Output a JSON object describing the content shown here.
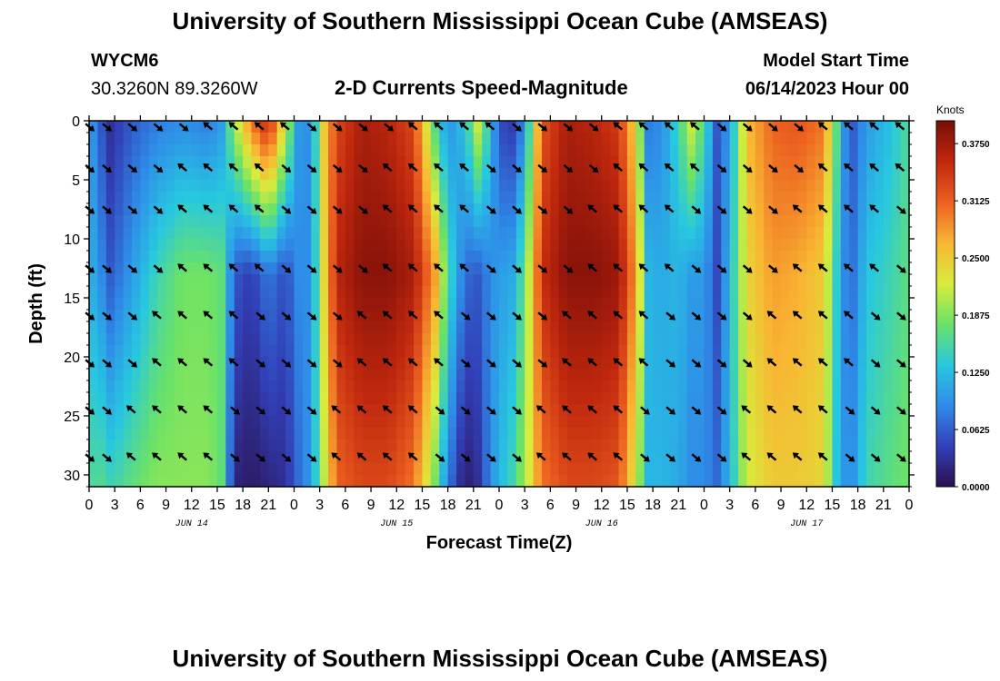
{
  "header": {
    "title_top": "University of Southern Mississippi Ocean Cube (AMSEAS)",
    "title_bottom": "University of Southern Mississippi Ocean Cube (AMSEAS)",
    "station": "WYCM6",
    "coords": "30.3260N  89.3260W",
    "plot_title": "2-D Currents Speed-Magnitude",
    "model_start_label": "Model Start Time",
    "model_start_value": "06/14/2023 Hour 00"
  },
  "colorbar": {
    "unit": "Knots",
    "ticks": [
      "0.0000",
      "0.0625",
      "0.1250",
      "0.1875",
      "0.2500",
      "0.3125",
      "0.3750"
    ],
    "stops": [
      "#2b0f4e",
      "#3240b8",
      "#2f8ce8",
      "#27c8e0",
      "#6be266",
      "#d8ec3c",
      "#f9b532",
      "#ec6020",
      "#c0280e",
      "#7a0d08"
    ]
  },
  "chart_data": {
    "type": "heatmap",
    "title": "2-D Currents Speed-Magnitude",
    "xlabel": "Forecast Time(Z)",
    "ylabel": "Depth (ft)",
    "x_hours": [
      0,
      96
    ],
    "x_tick_labels": [
      "0",
      "3",
      "6",
      "9",
      "12",
      "15",
      "18",
      "21",
      "0",
      "3",
      "6",
      "9",
      "12",
      "15",
      "18",
      "21",
      "0",
      "3",
      "6",
      "9",
      "12",
      "15",
      "18",
      "21",
      "0",
      "3",
      "6",
      "9",
      "12",
      "15",
      "18",
      "21",
      "0"
    ],
    "day_labels": [
      {
        "label": "JUN 14",
        "hour": 12
      },
      {
        "label": "JUN 15",
        "hour": 36
      },
      {
        "label": "JUN 16",
        "hour": 60
      },
      {
        "label": "JUN 17",
        "hour": 84
      }
    ],
    "ylim": [
      0,
      31
    ],
    "y_ticks": [
      0,
      5,
      10,
      15,
      20,
      25,
      30
    ],
    "value_range": [
      0,
      0.4
    ],
    "vector_depths": [
      0.5,
      4,
      7.5,
      12.5,
      16.5,
      20.5,
      24.5,
      28.5
    ],
    "vector_hours": [
      0,
      2,
      5,
      8,
      11,
      14,
      17,
      20,
      23,
      26,
      29,
      32,
      35,
      38,
      41,
      44,
      47,
      50,
      53,
      56,
      59,
      62,
      65,
      68,
      71,
      74,
      77,
      80,
      83,
      86,
      89,
      92,
      95
    ],
    "speed_profile_by_hour": [
      {
        "hour": 0,
        "speed": [
          0.11,
          0.12,
          0.15
        ]
      },
      {
        "hour": 1,
        "speed": [
          0.07,
          0.1,
          0.17
        ]
      },
      {
        "hour": 2.5,
        "speed": [
          0.03,
          0.06,
          0.15
        ]
      },
      {
        "hour": 5,
        "speed": [
          0.06,
          0.1,
          0.17
        ]
      },
      {
        "hour": 8,
        "speed": [
          0.08,
          0.15,
          0.19
        ]
      },
      {
        "hour": 11,
        "speed": [
          0.09,
          0.18,
          0.19
        ]
      },
      {
        "hour": 14,
        "speed": [
          0.08,
          0.18,
          0.19
        ]
      },
      {
        "hour": 15.5,
        "speed": [
          0.1,
          0.17,
          0.17
        ]
      },
      {
        "hour": 17,
        "speed": [
          0.2,
          0.06,
          0.02
        ]
      },
      {
        "hour": 19,
        "speed": [
          0.3,
          0.04,
          0.01
        ]
      },
      {
        "hour": 21,
        "speed": [
          0.36,
          0.08,
          0.02
        ]
      },
      {
        "hour": 23,
        "speed": [
          0.22,
          0.05,
          0.03
        ]
      },
      {
        "hour": 24.5,
        "speed": [
          0.1,
          0.09,
          0.07
        ]
      },
      {
        "hour": 26,
        "speed": [
          0.09,
          0.09,
          0.1
        ]
      },
      {
        "hour": 27.5,
        "speed": [
          0.25,
          0.24,
          0.21
        ]
      },
      {
        "hour": 29,
        "speed": [
          0.33,
          0.36,
          0.31
        ]
      },
      {
        "hour": 32,
        "speed": [
          0.37,
          0.39,
          0.33
        ]
      },
      {
        "hour": 35,
        "speed": [
          0.36,
          0.39,
          0.33
        ]
      },
      {
        "hour": 38,
        "speed": [
          0.33,
          0.37,
          0.3
        ]
      },
      {
        "hour": 40.5,
        "speed": [
          0.16,
          0.28,
          0.18
        ]
      },
      {
        "hour": 42,
        "speed": [
          0.09,
          0.16,
          0.08
        ]
      },
      {
        "hour": 44,
        "speed": [
          0.13,
          0.07,
          0.01
        ]
      },
      {
        "hour": 45.5,
        "speed": [
          0.22,
          0.06,
          0.03
        ]
      },
      {
        "hour": 47,
        "speed": [
          0.13,
          0.09,
          0.09
        ]
      },
      {
        "hour": 48,
        "speed": [
          0.05,
          0.1,
          0.12
        ]
      },
      {
        "hour": 49.5,
        "speed": [
          0.04,
          0.11,
          0.15
        ]
      },
      {
        "hour": 51,
        "speed": [
          0.09,
          0.17,
          0.2
        ]
      },
      {
        "hour": 53,
        "speed": [
          0.32,
          0.35,
          0.3
        ]
      },
      {
        "hour": 56,
        "speed": [
          0.37,
          0.39,
          0.33
        ]
      },
      {
        "hour": 59,
        "speed": [
          0.36,
          0.39,
          0.33
        ]
      },
      {
        "hour": 62,
        "speed": [
          0.34,
          0.38,
          0.32
        ]
      },
      {
        "hour": 64,
        "speed": [
          0.24,
          0.28,
          0.22
        ]
      },
      {
        "hour": 65.5,
        "speed": [
          0.08,
          0.12,
          0.12
        ]
      },
      {
        "hour": 67,
        "speed": [
          0.09,
          0.11,
          0.12
        ]
      },
      {
        "hour": 69,
        "speed": [
          0.15,
          0.12,
          0.11
        ]
      },
      {
        "hour": 70.5,
        "speed": [
          0.22,
          0.1,
          0.09
        ]
      },
      {
        "hour": 72,
        "speed": [
          0.16,
          0.1,
          0.09
        ]
      },
      {
        "hour": 73.5,
        "speed": [
          0.06,
          0.05,
          0.07
        ]
      },
      {
        "hour": 75,
        "speed": [
          0.1,
          0.12,
          0.12
        ]
      },
      {
        "hour": 77,
        "speed": [
          0.26,
          0.24,
          0.22
        ]
      },
      {
        "hour": 80,
        "speed": [
          0.31,
          0.28,
          0.25
        ]
      },
      {
        "hour": 83,
        "speed": [
          0.32,
          0.27,
          0.25
        ]
      },
      {
        "hour": 86,
        "speed": [
          0.3,
          0.25,
          0.24
        ]
      },
      {
        "hour": 87.5,
        "speed": [
          0.17,
          0.14,
          0.13
        ]
      },
      {
        "hour": 89,
        "speed": [
          0.05,
          0.06,
          0.08
        ]
      },
      {
        "hour": 91,
        "speed": [
          0.1,
          0.13,
          0.15
        ]
      },
      {
        "hour": 94,
        "speed": [
          0.13,
          0.15,
          0.17
        ]
      },
      {
        "hour": 96,
        "speed": [
          0.16,
          0.17,
          0.18
        ]
      }
    ],
    "profile_depths_ft": [
      0,
      13,
      31
    ]
  }
}
